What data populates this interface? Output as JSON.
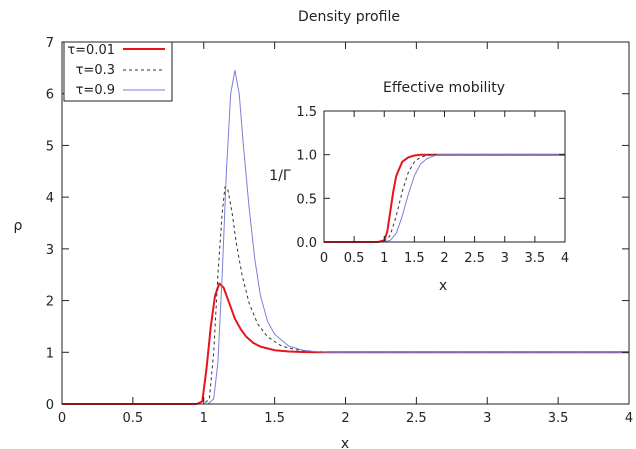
{
  "chart_data": [
    {
      "type": "line",
      "title": "Density profile",
      "xlabel": "x",
      "ylabel": "ρ",
      "xlim": [
        0,
        4
      ],
      "ylim": [
        0,
        7
      ],
      "xticks": [
        "0",
        "0.5",
        "1",
        "1.5",
        "2",
        "2.5",
        "3",
        "3.5",
        "4"
      ],
      "yticks": [
        "0",
        "1",
        "2",
        "3",
        "4",
        "5",
        "6",
        "7"
      ],
      "grid": false,
      "legend_position": "top-left",
      "series": [
        {
          "name": "τ=0.01",
          "color": "#e8141c",
          "dash": "solid",
          "x": [
            0,
            0.5,
            0.95,
            0.99,
            1.02,
            1.05,
            1.08,
            1.11,
            1.14,
            1.18,
            1.22,
            1.26,
            1.3,
            1.35,
            1.4,
            1.5,
            1.6,
            1.7,
            1.8,
            1.9,
            2.0,
            2.5,
            3.0,
            3.5,
            4.0
          ],
          "y": [
            0,
            0,
            0,
            0.05,
            0.7,
            1.5,
            2.1,
            2.33,
            2.25,
            1.95,
            1.65,
            1.45,
            1.3,
            1.18,
            1.11,
            1.04,
            1.015,
            1.005,
            1.0,
            1.0,
            1.0,
            1.0,
            1.0,
            1.0,
            1.0
          ]
        },
        {
          "name": "τ=0.3",
          "color": "#333333",
          "dash": "dashed",
          "x": [
            0,
            0.5,
            1.0,
            1.04,
            1.07,
            1.1,
            1.13,
            1.15,
            1.17,
            1.2,
            1.23,
            1.27,
            1.32,
            1.38,
            1.45,
            1.55,
            1.65,
            1.75,
            1.85,
            2.0,
            2.5,
            3.0,
            3.5,
            4.0
          ],
          "y": [
            0,
            0,
            0,
            0.1,
            1.0,
            2.5,
            3.7,
            4.2,
            4.15,
            3.7,
            3.1,
            2.5,
            1.95,
            1.55,
            1.3,
            1.12,
            1.05,
            1.02,
            1.005,
            1.0,
            1.0,
            1.0,
            1.0,
            1.0
          ]
        },
        {
          "name": "τ=0.9",
          "color": "#7b7fd8",
          "dash": "solid",
          "x": [
            0,
            0.5,
            1.03,
            1.07,
            1.1,
            1.13,
            1.16,
            1.19,
            1.22,
            1.25,
            1.28,
            1.32,
            1.36,
            1.4,
            1.45,
            1.5,
            1.6,
            1.7,
            1.8,
            1.9,
            2.0,
            2.5,
            3.0,
            3.5,
            4.0
          ],
          "y": [
            0,
            0,
            0,
            0.1,
            0.8,
            2.5,
            4.5,
            6.0,
            6.45,
            6.0,
            5.0,
            3.8,
            2.8,
            2.1,
            1.6,
            1.35,
            1.12,
            1.04,
            1.01,
            1.0,
            1.0,
            1.0,
            1.0,
            1.0,
            1.0
          ]
        }
      ]
    },
    {
      "type": "line",
      "title": "Effective mobility",
      "xlabel": "x",
      "ylabel": "1/Γ",
      "xlim": [
        0,
        4
      ],
      "ylim": [
        0,
        1.5
      ],
      "xticks": [
        "0",
        "0.5",
        "1",
        "1.5",
        "2",
        "2.5",
        "3",
        "3.5",
        "4"
      ],
      "yticks": [
        "0.0",
        "0.5",
        "1.0",
        "1.5"
      ],
      "grid": false,
      "series": [
        {
          "color": "#e8141c",
          "dash": "solid",
          "x": [
            0,
            0.5,
            0.9,
            1.0,
            1.05,
            1.1,
            1.15,
            1.2,
            1.3,
            1.4,
            1.5,
            1.6,
            1.7,
            1.8,
            2.0,
            2.5,
            3.0,
            3.5,
            4.0
          ],
          "y": [
            0,
            0,
            0,
            0.02,
            0.12,
            0.35,
            0.58,
            0.76,
            0.92,
            0.97,
            0.99,
            1.0,
            1.0,
            1.0,
            1.0,
            1.0,
            1.0,
            1.0,
            1.0
          ]
        },
        {
          "color": "#333333",
          "dash": "dashed",
          "x": [
            0,
            0.5,
            0.95,
            1.05,
            1.1,
            1.2,
            1.3,
            1.4,
            1.5,
            1.6,
            1.7,
            1.8,
            2.0,
            2.5,
            3.0,
            3.5,
            4.0
          ],
          "y": [
            0,
            0,
            0,
            0.03,
            0.08,
            0.3,
            0.58,
            0.8,
            0.92,
            0.97,
            0.99,
            1.0,
            1.0,
            1.0,
            1.0,
            1.0,
            1.0
          ]
        },
        {
          "color": "#7b7fd8",
          "dash": "solid",
          "x": [
            0,
            0.5,
            1.0,
            1.1,
            1.2,
            1.3,
            1.4,
            1.5,
            1.6,
            1.7,
            1.8,
            1.9,
            2.0,
            2.5,
            3.0,
            3.5,
            4.0
          ],
          "y": [
            0,
            0,
            0,
            0.02,
            0.1,
            0.3,
            0.55,
            0.76,
            0.89,
            0.95,
            0.98,
            1.0,
            1.0,
            1.0,
            1.0,
            1.0,
            1.0
          ]
        }
      ]
    }
  ]
}
